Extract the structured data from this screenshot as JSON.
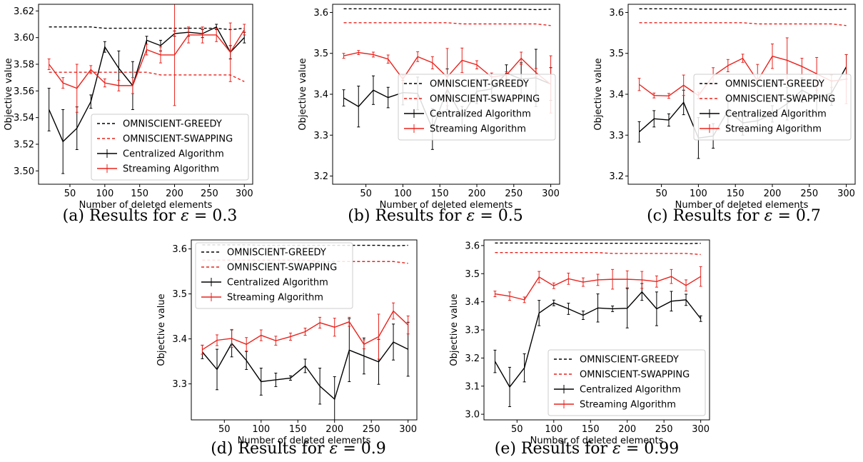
{
  "xlabel": "Number of deleted elements",
  "ylabel": "Objective value",
  "legend_labels": [
    "OMNISCIENT-GREEDY",
    "OMNISCIENT-SWAPPING",
    "Centralized Algorithm",
    "Streaming Algorithm"
  ],
  "colors": {
    "black": "#000000",
    "red": "#e8231d"
  },
  "x_ticks": [
    50,
    100,
    150,
    200,
    250,
    300
  ],
  "caption_prefix": "Results for",
  "epsilon_symbol": "ε",
  "equals": "=",
  "chart_data": [
    {
      "type": "line",
      "label": "(a)",
      "epsilon": "0.3",
      "xlim": [
        5,
        312
      ],
      "ylim": [
        3.49,
        3.625
      ],
      "yticks": [
        3.5,
        3.52,
        3.54,
        3.56,
        3.58,
        3.6,
        3.62
      ],
      "ytick_decimals": 2,
      "legend_position": "lower-right",
      "x": [
        20,
        40,
        60,
        80,
        100,
        120,
        140,
        160,
        180,
        200,
        220,
        240,
        260,
        280,
        300
      ],
      "series": [
        {
          "name": "OMNISCIENT-GREEDY",
          "style": "dashed",
          "color": "black",
          "values": [
            3.608,
            3.608,
            3.608,
            3.608,
            3.607,
            3.607,
            3.607,
            3.607,
            3.607,
            3.607,
            3.607,
            3.607,
            3.607,
            3.606,
            3.607
          ]
        },
        {
          "name": "OMNISCIENT-SWAPPING",
          "style": "dashed",
          "color": "red",
          "values": [
            3.574,
            3.574,
            3.574,
            3.574,
            3.574,
            3.574,
            3.574,
            3.574,
            3.572,
            3.572,
            3.572,
            3.572,
            3.572,
            3.572,
            3.567
          ]
        },
        {
          "name": "Centralized Algorithm",
          "style": "errorbar",
          "color": "black",
          "values": [
            3.546,
            3.522,
            3.532,
            3.552,
            3.593,
            3.577,
            3.564,
            3.598,
            3.594,
            3.603,
            3.604,
            3.603,
            3.608,
            3.589,
            3.6
          ],
          "errors": [
            0.016,
            0.024,
            0.016,
            0.005,
            0.004,
            0.013,
            0.018,
            0.003,
            0.004,
            0.002,
            0.003,
            0.003,
            0.002,
            0.005,
            0.004
          ]
        },
        {
          "name": "Streaming Algorithm",
          "style": "errorbar",
          "color": "red",
          "values": [
            3.58,
            3.566,
            3.562,
            3.576,
            3.566,
            3.564,
            3.564,
            3.591,
            3.587,
            3.587,
            3.602,
            3.602,
            3.602,
            3.589,
            3.606
          ],
          "errors": [
            0.004,
            0.004,
            0.018,
            0.003,
            0.003,
            0.004,
            0.006,
            0.004,
            0.006,
            0.038,
            0.006,
            0.006,
            0.005,
            0.022,
            0.004
          ]
        }
      ]
    },
    {
      "type": "line",
      "label": "(b)",
      "epsilon": "0.5",
      "xlim": [
        5,
        312
      ],
      "ylim": [
        3.18,
        3.62
      ],
      "yticks": [
        3.2,
        3.3,
        3.4,
        3.5,
        3.6
      ],
      "ytick_decimals": 1,
      "legend_position": "center-right",
      "x": [
        20,
        40,
        60,
        80,
        100,
        120,
        140,
        160,
        180,
        200,
        220,
        240,
        260,
        280,
        300
      ],
      "series": [
        {
          "name": "OMNISCIENT-GREEDY",
          "style": "dashed",
          "color": "black",
          "values": [
            3.609,
            3.609,
            3.609,
            3.609,
            3.608,
            3.608,
            3.608,
            3.608,
            3.608,
            3.608,
            3.608,
            3.608,
            3.608,
            3.607,
            3.608
          ]
        },
        {
          "name": "OMNISCIENT-SWAPPING",
          "style": "dashed",
          "color": "red",
          "values": [
            3.575,
            3.575,
            3.575,
            3.575,
            3.575,
            3.575,
            3.575,
            3.575,
            3.572,
            3.572,
            3.572,
            3.572,
            3.572,
            3.572,
            3.568
          ]
        },
        {
          "name": "Centralized Algorithm",
          "style": "errorbar",
          "color": "black",
          "values": [
            3.391,
            3.37,
            3.41,
            3.392,
            3.404,
            3.402,
            3.315,
            3.412,
            3.345,
            3.407,
            3.413,
            3.452,
            3.437,
            3.44,
            3.425
          ],
          "errors": [
            0.02,
            0.05,
            0.035,
            0.025,
            0.03,
            0.04,
            0.05,
            0.05,
            0.025,
            0.03,
            0.03,
            0.02,
            0.04,
            0.07,
            0.04
          ]
        },
        {
          "name": "Streaming Algorithm",
          "style": "errorbar",
          "color": "red",
          "values": [
            3.494,
            3.502,
            3.497,
            3.486,
            3.437,
            3.492,
            3.477,
            3.442,
            3.483,
            3.472,
            3.442,
            3.447,
            3.488,
            3.453,
            3.424
          ],
          "errors": [
            0.006,
            0.005,
            0.006,
            0.01,
            0.01,
            0.012,
            0.015,
            0.07,
            0.03,
            0.01,
            0.01,
            0.008,
            0.015,
            0.01,
            0.07
          ]
        }
      ]
    },
    {
      "type": "line",
      "label": "(c)",
      "epsilon": "0.7",
      "xlim": [
        5,
        312
      ],
      "ylim": [
        3.18,
        3.62
      ],
      "yticks": [
        3.2,
        3.3,
        3.4,
        3.5,
        3.6
      ],
      "ytick_decimals": 1,
      "legend_position": "center-right",
      "x": [
        20,
        40,
        60,
        80,
        100,
        120,
        140,
        160,
        180,
        200,
        220,
        240,
        260,
        280,
        300
      ],
      "series": [
        {
          "name": "OMNISCIENT-GREEDY",
          "style": "dashed",
          "color": "black",
          "values": [
            3.609,
            3.609,
            3.609,
            3.609,
            3.608,
            3.608,
            3.608,
            3.608,
            3.608,
            3.608,
            3.608,
            3.608,
            3.608,
            3.607,
            3.608
          ]
        },
        {
          "name": "OMNISCIENT-SWAPPING",
          "style": "dashed",
          "color": "red",
          "values": [
            3.575,
            3.575,
            3.575,
            3.575,
            3.575,
            3.575,
            3.575,
            3.575,
            3.572,
            3.572,
            3.572,
            3.572,
            3.572,
            3.572,
            3.568
          ]
        },
        {
          "name": "Centralized Algorithm",
          "style": "errorbar",
          "color": "black",
          "values": [
            3.308,
            3.34,
            3.337,
            3.38,
            3.293,
            3.298,
            3.36,
            3.33,
            3.335,
            3.352,
            3.377,
            3.41,
            3.391,
            3.403,
            3.467
          ],
          "errors": [
            0.025,
            0.02,
            0.015,
            0.03,
            0.05,
            0.03,
            0.04,
            0.03,
            0.02,
            0.02,
            0.04,
            0.03,
            0.04,
            0.03,
            0.03
          ]
        },
        {
          "name": "Streaming Algorithm",
          "style": "errorbar",
          "color": "red",
          "values": [
            3.424,
            3.397,
            3.396,
            3.422,
            3.397,
            3.445,
            3.47,
            3.488,
            3.433,
            3.493,
            3.483,
            3.468,
            3.45,
            3.432,
            3.437
          ],
          "errors": [
            0.015,
            0.006,
            0.006,
            0.025,
            0.008,
            0.02,
            0.015,
            0.01,
            0.04,
            0.03,
            0.055,
            0.02,
            0.04,
            0.015,
            0.06
          ]
        }
      ]
    },
    {
      "type": "line",
      "label": "(d)",
      "epsilon": "0.9",
      "xlim": [
        5,
        312
      ],
      "ylim": [
        3.22,
        3.62
      ],
      "yticks": [
        3.3,
        3.4,
        3.5,
        3.6
      ],
      "ytick_decimals": 1,
      "legend_position": "top-left",
      "x": [
        20,
        40,
        60,
        80,
        100,
        120,
        140,
        160,
        180,
        200,
        220,
        240,
        260,
        280,
        300
      ],
      "series": [
        {
          "name": "OMNISCIENT-GREEDY",
          "style": "dashed",
          "color": "black",
          "values": [
            3.609,
            3.609,
            3.609,
            3.609,
            3.608,
            3.608,
            3.608,
            3.608,
            3.608,
            3.608,
            3.608,
            3.608,
            3.608,
            3.607,
            3.608
          ]
        },
        {
          "name": "OMNISCIENT-SWAPPING",
          "style": "dashed",
          "color": "red",
          "values": [
            3.575,
            3.575,
            3.575,
            3.575,
            3.575,
            3.575,
            3.575,
            3.575,
            3.572,
            3.572,
            3.572,
            3.572,
            3.572,
            3.572,
            3.568
          ]
        },
        {
          "name": "Centralized Algorithm",
          "style": "errorbar",
          "color": "black",
          "values": [
            3.371,
            3.332,
            3.39,
            3.352,
            3.305,
            3.309,
            3.313,
            3.34,
            3.295,
            3.266,
            3.375,
            3.362,
            3.349,
            3.393,
            3.377
          ],
          "errors": [
            0.015,
            0.045,
            0.03,
            0.02,
            0.03,
            0.015,
            0.005,
            0.015,
            0.04,
            0.05,
            0.07,
            0.04,
            0.05,
            0.04,
            0.06
          ]
        },
        {
          "name": "Streaming Algorithm",
          "style": "errorbar",
          "color": "red",
          "values": [
            3.376,
            3.397,
            3.401,
            3.388,
            3.408,
            3.396,
            3.405,
            3.416,
            3.436,
            3.426,
            3.438,
            3.388,
            3.405,
            3.462,
            3.431
          ],
          "errors": [
            0.01,
            0.012,
            0.02,
            0.015,
            0.012,
            0.01,
            0.008,
            0.008,
            0.012,
            0.02,
            0.01,
            0.01,
            0.05,
            0.018,
            0.02
          ]
        }
      ]
    },
    {
      "type": "line",
      "label": "(e)",
      "epsilon": "0.99",
      "xlim": [
        5,
        312
      ],
      "ylim": [
        2.98,
        3.62
      ],
      "yticks": [
        3.0,
        3.1,
        3.2,
        3.3,
        3.4,
        3.5,
        3.6
      ],
      "ytick_decimals": 1,
      "legend_position": "lower-right",
      "x": [
        20,
        40,
        60,
        80,
        100,
        120,
        140,
        160,
        180,
        200,
        220,
        240,
        260,
        280,
        300
      ],
      "series": [
        {
          "name": "OMNISCIENT-GREEDY",
          "style": "dashed",
          "color": "black",
          "values": [
            3.609,
            3.609,
            3.609,
            3.609,
            3.608,
            3.608,
            3.608,
            3.608,
            3.608,
            3.608,
            3.608,
            3.608,
            3.608,
            3.607,
            3.608
          ]
        },
        {
          "name": "OMNISCIENT-SWAPPING",
          "style": "dashed",
          "color": "red",
          "values": [
            3.575,
            3.575,
            3.575,
            3.575,
            3.575,
            3.575,
            3.575,
            3.575,
            3.572,
            3.572,
            3.572,
            3.572,
            3.572,
            3.572,
            3.568
          ]
        },
        {
          "name": "Centralized Algorithm",
          "style": "errorbar",
          "color": "black",
          "values": [
            3.188,
            3.097,
            3.165,
            3.36,
            3.396,
            3.375,
            3.352,
            3.378,
            3.375,
            3.377,
            3.435,
            3.375,
            3.402,
            3.407,
            3.34
          ],
          "errors": [
            0.04,
            0.07,
            0.05,
            0.045,
            0.01,
            0.02,
            0.015,
            0.05,
            0.01,
            0.07,
            0.03,
            0.06,
            0.035,
            0.02,
            0.01
          ]
        },
        {
          "name": "Streaming Algorithm",
          "style": "errorbar",
          "color": "red",
          "values": [
            3.428,
            3.42,
            3.407,
            3.488,
            3.457,
            3.482,
            3.47,
            3.478,
            3.48,
            3.48,
            3.478,
            3.472,
            3.49,
            3.458,
            3.49
          ],
          "errors": [
            0.01,
            0.015,
            0.01,
            0.02,
            0.01,
            0.02,
            0.015,
            0.02,
            0.035,
            0.03,
            0.03,
            0.02,
            0.025,
            0.02,
            0.035
          ]
        }
      ]
    }
  ]
}
